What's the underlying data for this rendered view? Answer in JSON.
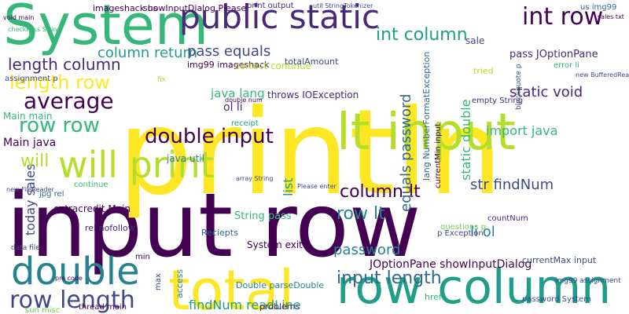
{
  "words": [
    "input row",
    "println",
    "System",
    "public static",
    "int row",
    "lt input",
    "will print",
    "total",
    "row column",
    "double",
    "row length",
    "average",
    "length row",
    "length column",
    "column return",
    "pass equals",
    "int column",
    "double input",
    "row row",
    "Main java",
    "today sales",
    "column lt",
    "row lt",
    "str findNum",
    "input length",
    "findNum readLine",
    "password",
    "JOptionPane showInputDialog",
    "static void",
    "import java",
    "equals password",
    "static double",
    "throws IOException",
    "java lang",
    "ol li",
    "li ol",
    "pass JOptionPane",
    "extracredit Main",
    "list",
    "String pass",
    "currentMax input",
    "password System",
    "img99 assignment",
    "Double parseDouble",
    "System exit",
    "java util",
    "empty String",
    "Main main",
    "will",
    "assignment p",
    "imageshack us",
    "showInputDialog Please",
    "img99 imageshack",
    "correct continue",
    "totalAmount",
    "Reciepts",
    "print output",
    "util StringTokenizer",
    "us img99",
    "error li",
    "new BufferedReader",
    "lang NumberFormatException",
    "currentMin input",
    "blockquote p",
    "tried",
    "sale",
    "receipt",
    "problems",
    "access",
    "countNum",
    "href",
    "min",
    "max",
    "rel nofollow",
    "questions p",
    "p Exception",
    "sun misc",
    "thread main",
    "data file",
    "new FileReader",
    "continue",
    "jpg rel",
    "fix",
    "void main",
    "sales txt",
    "checkPass String",
    "pre code",
    "array String",
    "double num",
    "Please enter"
  ]
}
